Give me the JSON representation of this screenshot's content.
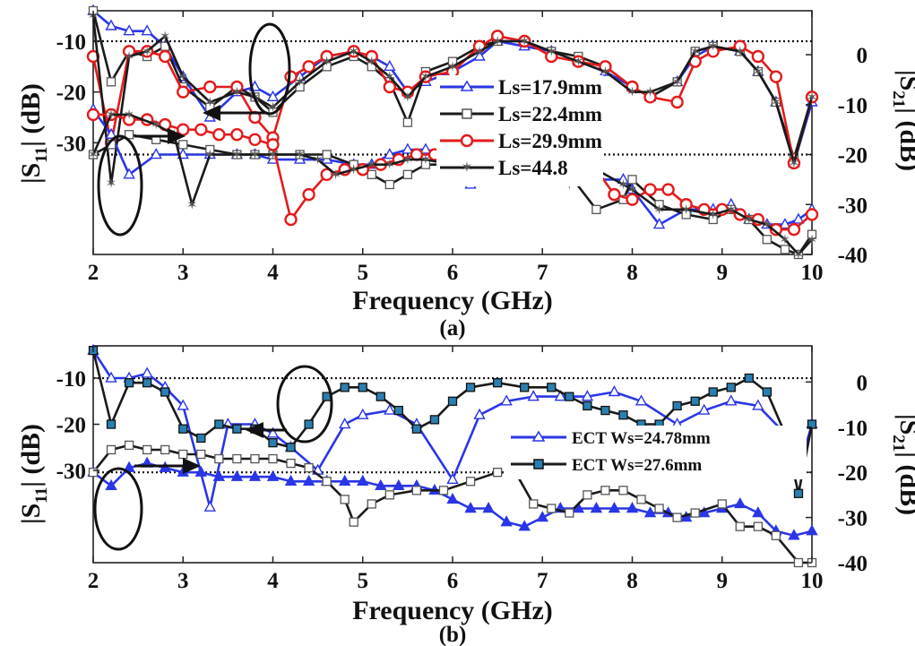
{
  "colors": {
    "blue": "#2a36e6",
    "black": "#1a1a1a",
    "red": "#e41b1b",
    "gray": "#555555"
  },
  "panel_a": {
    "caption": "(a)",
    "xlabel": "Frequency (GHz)",
    "ylabel_left": "|S",
    "ylabel_left_sub": "11",
    "ylabel_left_end": "| (dB)",
    "ylabel_right": "|S",
    "ylabel_right_sub": "21",
    "ylabel_right_end": "| (dB)",
    "legend": [
      "Ls=17.9mm",
      "Ls=22.4mm",
      "Ls=29.9mm",
      "Ls=44.8"
    ]
  },
  "panel_b": {
    "caption": "(b)",
    "xlabel": "Frequency (GHz)",
    "ylabel_left": "|S",
    "ylabel_left_sub": "11",
    "ylabel_left_end": "| (dB)",
    "ylabel_right": "|S",
    "ylabel_right_sub": "21",
    "ylabel_right_end": "| (dB)",
    "legend": [
      "ECT Ws=24.78mm",
      "ECT Ws=27.6mm"
    ]
  },
  "chart_data": [
    {
      "type": "line",
      "panel": "a",
      "xlabel": "Frequency (GHz)",
      "xlim": [
        2,
        10
      ],
      "xticks": [
        "2",
        "3",
        "4",
        "5",
        "6",
        "7",
        "8",
        "9",
        "10"
      ],
      "left_axis": {
        "label": "|S11| (dB)",
        "ticks": [
          "-10",
          "-20",
          "-30"
        ],
        "ylim": [
          -52,
          -4
        ]
      },
      "right_axis": {
        "label": "|S21| (dB)",
        "ticks": [
          "0",
          "-10",
          "-20",
          "-30",
          "-40"
        ],
        "ylim": [
          -40,
          8.8
        ]
      },
      "reference_lines": [
        {
          "axis": "left",
          "y": -10
        },
        {
          "axis": "right",
          "y": -20
        }
      ],
      "legend_position": "center-right",
      "series": [
        {
          "name": "Ls=17.9mm",
          "axis": "left",
          "color": "#2a36e6",
          "marker": "triangle",
          "x": [
            2,
            2.2,
            2.4,
            2.6,
            2.8,
            3.0,
            3.3,
            3.6,
            3.8,
            4.0,
            4.3,
            4.6,
            4.9,
            5.1,
            5.3,
            5.5,
            5.7,
            6.0,
            6.3,
            6.5,
            6.8,
            7.1,
            7.4,
            7.7,
            8.0,
            8.2,
            8.5,
            8.7,
            8.9,
            9.2,
            9.4,
            9.6,
            9.8,
            10.0
          ],
          "y": [
            -4,
            -7,
            -8,
            -8,
            -11,
            -17,
            -25,
            -20,
            -19,
            -21,
            -17,
            -13,
            -12,
            -13,
            -15,
            -20,
            -18,
            -16,
            -13,
            -10,
            -11,
            -12,
            -14,
            -16,
            -19,
            -21,
            -18,
            -13,
            -11,
            -12,
            -16,
            -22,
            -34,
            -22
          ]
        },
        {
          "name": "Ls=22.4mm",
          "axis": "left",
          "color": "#1a1a1a",
          "marker": "square",
          "x": [
            2,
            2.2,
            2.4,
            2.6,
            2.8,
            3.0,
            3.3,
            3.6,
            3.8,
            4.0,
            4.3,
            4.6,
            4.9,
            5.1,
            5.3,
            5.5,
            5.7,
            6.0,
            6.3,
            6.5,
            6.8,
            7.1,
            7.4,
            7.7,
            8.0,
            8.2,
            8.5,
            8.7,
            8.9,
            9.2,
            9.4,
            9.6,
            9.8,
            10.0
          ],
          "y": [
            -4,
            -18,
            -12,
            -13,
            -11,
            -19,
            -23,
            -19,
            -21,
            -24,
            -19,
            -15,
            -13,
            -15,
            -18,
            -26,
            -16,
            -14,
            -11,
            -10,
            -10,
            -12,
            -13,
            -15,
            -19,
            -21,
            -18,
            -12,
            -11,
            -12,
            -16,
            -22,
            -33,
            -21
          ]
        },
        {
          "name": "Ls=29.9mm",
          "axis": "left",
          "color": "#e41b1b",
          "marker": "circle",
          "x": [
            2,
            2.2,
            2.4,
            2.6,
            2.8,
            3.0,
            3.3,
            3.6,
            3.8,
            4.0,
            4.2,
            4.4,
            4.6,
            4.9,
            5.1,
            5.3,
            5.5,
            5.7,
            6.0,
            6.3,
            6.5,
            6.8,
            7.1,
            7.4,
            7.7,
            8.0,
            8.2,
            8.5,
            8.7,
            8.9,
            9.2,
            9.4,
            9.6,
            9.8,
            10.0
          ],
          "y": [
            -13,
            -30,
            -12,
            -12,
            -13,
            -20,
            -19,
            -19,
            -25,
            -29,
            -17,
            -15,
            -13,
            -12,
            -13,
            -19,
            -20,
            -17,
            -16,
            -11,
            -9,
            -10,
            -13,
            -14,
            -15,
            -19,
            -21,
            -22,
            -14,
            -12,
            -11,
            -13,
            -17,
            -34,
            -21
          ]
        },
        {
          "name": "Ls=44.8",
          "axis": "left",
          "color": "#1a1a1a",
          "marker": "star",
          "x": [
            2,
            2.2,
            2.4,
            2.6,
            2.8,
            3.0,
            3.3,
            3.6,
            3.8,
            4.0,
            4.3,
            4.6,
            4.9,
            5.1,
            5.3,
            5.5,
            5.7,
            6.0,
            6.3,
            6.5,
            6.8,
            7.1,
            7.4,
            7.7,
            8.0,
            8.2,
            8.5,
            8.7,
            8.9,
            9.2,
            9.4,
            9.6,
            9.8,
            10.0
          ],
          "y": [
            -5,
            -38,
            -13,
            -12,
            -9,
            -17,
            -22,
            -20,
            -21,
            -23,
            -18,
            -14,
            -12,
            -14,
            -17,
            -21,
            -17,
            -15,
            -12,
            -10,
            -10,
            -12,
            -14,
            -16,
            -20,
            -20,
            -18,
            -12,
            -11,
            -12,
            -16,
            -22,
            -34,
            -21
          ]
        },
        {
          "name": "Ls=17.9mm",
          "axis": "right",
          "color": "#2a36e6",
          "marker": "triangle",
          "x": [
            2,
            2.2,
            2.4,
            2.7,
            3.0,
            3.3,
            3.6,
            3.8,
            4.0,
            4.3,
            4.6,
            4.9,
            5.1,
            5.3,
            5.5,
            5.7,
            6.0,
            6.2,
            6.5,
            6.8,
            7.0,
            7.3,
            7.6,
            7.9,
            8.0,
            8.3,
            8.6,
            8.9,
            9.1,
            9.3,
            9.5,
            9.7,
            9.85,
            10.0
          ],
          "y": [
            -11,
            -16,
            -24,
            -20,
            -20,
            -20,
            -20,
            -20,
            -21,
            -21,
            -21,
            -22,
            -22,
            -20,
            -19,
            -19,
            -20,
            -26,
            -24,
            -24,
            -24,
            -24,
            -25,
            -25,
            -27,
            -34,
            -31,
            -31,
            -30,
            -33,
            -34,
            -34,
            -33,
            -31
          ]
        },
        {
          "name": "Ls=22.4mm",
          "axis": "right",
          "color": "#1a1a1a",
          "marker": "square",
          "x": [
            2,
            2.2,
            2.4,
            2.7,
            3.0,
            3.3,
            3.6,
            3.8,
            4.0,
            4.3,
            4.6,
            4.9,
            5.1,
            5.3,
            5.5,
            5.7,
            6.0,
            6.2,
            6.5,
            6.8,
            7.0,
            7.3,
            7.6,
            7.9,
            8.0,
            8.3,
            8.6,
            8.9,
            9.1,
            9.3,
            9.5,
            9.7,
            9.85,
            10.0
          ],
          "y": [
            -20,
            -18,
            -16,
            -17,
            -18,
            -19,
            -20,
            -20,
            -20,
            -20,
            -20,
            -22,
            -24,
            -26,
            -24,
            -22,
            -22,
            -24,
            -23,
            -21,
            -22,
            -24,
            -31,
            -29,
            -25,
            -30,
            -32,
            -33,
            -31,
            -33,
            -37,
            -39,
            -40,
            -36
          ]
        },
        {
          "name": "Ls=29.9mm",
          "axis": "right",
          "color": "#e41b1b",
          "marker": "circle",
          "x": [
            2,
            2.2,
            2.4,
            2.6,
            2.8,
            3.0,
            3.2,
            3.4,
            3.6,
            3.8,
            4.0,
            4.2,
            4.4,
            4.6,
            4.8,
            5.0,
            5.2,
            5.4,
            5.6,
            5.8,
            6.0,
            6.2,
            6.4,
            6.6,
            6.8,
            7.0,
            7.2,
            7.4,
            7.6,
            7.8,
            8.0,
            8.2,
            8.4,
            8.6,
            8.8,
            9.0,
            9.2,
            9.4,
            9.6,
            9.8,
            10.0
          ],
          "y": [
            -12,
            -12,
            -13,
            -13,
            -14,
            -15,
            -15,
            -16,
            -16,
            -17,
            -18,
            -33,
            -28,
            -24,
            -23,
            -23,
            -22,
            -21,
            -20,
            -20,
            -21,
            -24,
            -25,
            -24,
            -24,
            -24,
            -24,
            -24,
            -23,
            -28,
            -29,
            -27,
            -27,
            -30,
            -31,
            -31,
            -32,
            -33,
            -35,
            -35,
            -32
          ]
        },
        {
          "name": "Ls=44.8",
          "axis": "right",
          "color": "#1a1a1a",
          "marker": "star",
          "x": [
            2,
            2.2,
            2.4,
            2.7,
            2.9,
            3.1,
            3.3,
            3.6,
            3.8,
            4.0,
            4.3,
            4.5,
            4.7,
            4.9,
            5.1,
            5.3,
            5.5,
            5.7,
            6.0,
            6.2,
            6.5,
            6.8,
            7.0,
            7.3,
            7.6,
            7.9,
            8.0,
            8.3,
            8.6,
            8.9,
            9.1,
            9.3,
            9.5,
            9.7,
            9.85,
            10.0
          ],
          "y": [
            -20,
            -12,
            -12,
            -14,
            -16,
            -30,
            -20,
            -20,
            -20,
            -20,
            -20,
            -21,
            -24,
            -23,
            -22,
            -22,
            -21,
            -21,
            -22,
            -24,
            -23,
            -21,
            -22,
            -26,
            -23,
            -26,
            -27,
            -31,
            -31,
            -32,
            -31,
            -33,
            -34,
            -37,
            -40,
            -37
          ]
        }
      ]
    },
    {
      "type": "line",
      "panel": "b",
      "xlabel": "Frequency (GHz)",
      "xlim": [
        2,
        10
      ],
      "xticks": [
        "2",
        "3",
        "4",
        "5",
        "6",
        "7",
        "8",
        "9",
        "10"
      ],
      "left_axis": {
        "label": "|S11| (dB)",
        "ticks": [
          "-10",
          "-20",
          "-30"
        ],
        "ylim": [
          -50,
          -3
        ]
      },
      "right_axis": {
        "label": "|S21| (dB)",
        "ticks": [
          "0",
          "-10",
          "-20",
          "-30",
          "-40"
        ],
        "ylim": [
          -40,
          8
        ]
      },
      "reference_lines": [
        {
          "axis": "left",
          "y": -10
        },
        {
          "axis": "right",
          "y": -20
        }
      ],
      "legend_position": "center-right",
      "series": [
        {
          "name": "ECT Ws=24.78mm",
          "axis": "left",
          "color": "#2a36e6",
          "marker": "triangle",
          "x": [
            2,
            2.2,
            2.4,
            2.6,
            2.8,
            3.0,
            3.3,
            3.5,
            3.8,
            4.0,
            4.2,
            4.5,
            4.8,
            5.0,
            5.3,
            5.6,
            6.0,
            6.3,
            6.6,
            6.9,
            7.2,
            7.5,
            7.8,
            8.1,
            8.5,
            8.8,
            9.1,
            9.4,
            9.7,
            9.85,
            10.0
          ],
          "y": [
            -4,
            -10,
            -10,
            -9,
            -12,
            -16,
            -38,
            -20,
            -20,
            -22,
            -25,
            -30,
            -20,
            -18,
            -17,
            -20,
            -32,
            -18,
            -15,
            -14,
            -14,
            -14,
            -13,
            -15,
            -20,
            -17,
            -15,
            -16,
            -22,
            -30,
            -20
          ]
        },
        {
          "name": "ECT Ws=27.6mm",
          "axis": "left",
          "color": "#1a1a1a",
          "marker": "square",
          "x": [
            2,
            2.2,
            2.4,
            2.6,
            2.8,
            3.0,
            3.2,
            3.4,
            3.6,
            3.8,
            4.0,
            4.2,
            4.4,
            4.6,
            4.8,
            5.0,
            5.2,
            5.4,
            5.6,
            5.8,
            6.0,
            6.2,
            6.5,
            6.8,
            7.1,
            7.3,
            7.5,
            7.7,
            7.9,
            8.1,
            8.3,
            8.5,
            8.7,
            8.9,
            9.1,
            9.3,
            9.5,
            9.7,
            9.85,
            10.0
          ],
          "y": [
            -4,
            -20,
            -11,
            -11,
            -13,
            -21,
            -23,
            -20,
            -21,
            -21,
            -24,
            -25,
            -20,
            -14,
            -12,
            -12,
            -14,
            -17,
            -21,
            -19,
            -15,
            -12,
            -11,
            -12,
            -12,
            -14,
            -16,
            -17,
            -18,
            -20,
            -20,
            -16,
            -15,
            -13,
            -12,
            -10,
            -13,
            -22,
            -35,
            -20
          ]
        },
        {
          "name": "ECT Ws=24.78mm",
          "axis": "right",
          "color": "#2a36e6",
          "marker": "triangle",
          "x": [
            2,
            2.2,
            2.4,
            2.6,
            2.8,
            3.0,
            3.2,
            3.4,
            3.6,
            3.8,
            4.0,
            4.2,
            4.4,
            4.6,
            4.8,
            5.0,
            5.2,
            5.4,
            5.6,
            5.8,
            6.0,
            6.2,
            6.4,
            6.6,
            6.8,
            7.0,
            7.2,
            7.4,
            7.6,
            7.8,
            8.0,
            8.2,
            8.4,
            8.6,
            8.8,
            9.0,
            9.2,
            9.4,
            9.6,
            9.8,
            10.0
          ],
          "y": [
            -20,
            -23,
            -19,
            -18,
            -19,
            -20,
            -20,
            -21,
            -21,
            -21,
            -21,
            -22,
            -22,
            -22,
            -22,
            -22,
            -23,
            -23,
            -23,
            -24,
            -26,
            -28,
            -28,
            -31,
            -32,
            -30,
            -28,
            -28,
            -28,
            -28,
            -28,
            -29,
            -29,
            -30,
            -29,
            -28,
            -27,
            -29,
            -33,
            -34,
            -33
          ]
        },
        {
          "name": "ECT Ws=27.6mm",
          "axis": "right",
          "color": "#1a1a1a",
          "marker": "square",
          "x": [
            2,
            2.2,
            2.4,
            2.6,
            2.8,
            3.0,
            3.2,
            3.4,
            3.6,
            3.8,
            4.0,
            4.2,
            4.4,
            4.6,
            4.8,
            4.9,
            5.1,
            5.3,
            5.6,
            5.9,
            6.2,
            6.5,
            6.7,
            6.9,
            7.1,
            7.3,
            7.5,
            7.7,
            7.9,
            8.1,
            8.3,
            8.5,
            8.7,
            9.0,
            9.2,
            9.4,
            9.6,
            9.85,
            10.0
          ],
          "y": [
            -20,
            -15,
            -14,
            -15,
            -15,
            -16,
            -16,
            -17,
            -17,
            -17,
            -17,
            -18,
            -19,
            -22,
            -26,
            -31,
            -27,
            -25,
            -24,
            -24,
            -22,
            -20,
            -20,
            -27,
            -28,
            -29,
            -25,
            -24,
            -24,
            -26,
            -28,
            -30,
            -29,
            -27,
            -32,
            -32,
            -34,
            -40,
            -40
          ]
        }
      ]
    }
  ]
}
